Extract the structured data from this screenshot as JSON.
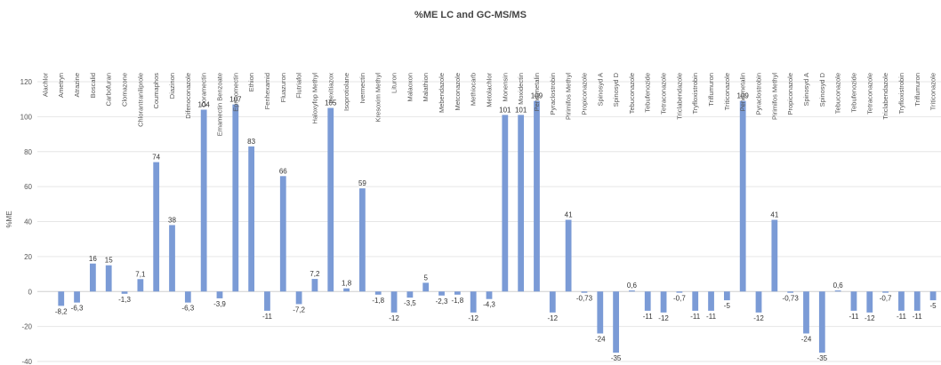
{
  "chart_data": {
    "type": "bar",
    "title": "%ME LC and GC-MS/MS",
    "ylabel": "%ME",
    "xlabel": "",
    "ylim": [
      -40,
      120
    ],
    "yticks": [
      -40,
      -20,
      0,
      20,
      40,
      60,
      80,
      100,
      120
    ],
    "grid": true,
    "legend": "none",
    "color": "#7b9bd6",
    "categories": [
      "Alachlor",
      "Ametryn",
      "Atrazine",
      "Boscalid",
      "Carbofuran",
      "Clomazone",
      "Chlorantraniliprole",
      "Coumaphos",
      "Diazinon",
      "Difenoconazole",
      "Doramectin",
      "Emamectin Benzoate",
      "Eprinomectin",
      "Ethion",
      "Fenhexamid",
      "Fluazuron",
      "Flutriafol",
      "Haloxyfop Methyl",
      "Hexitiazox",
      "Isoprotiolane",
      "Ivermectin",
      "Kresoxim Methyl",
      "Lituron",
      "Malaoxon",
      "Malathion",
      "Mebendazole",
      "Metconazole",
      "Methiocarb",
      "Metolachlor",
      "Monensin",
      "Moxidectin",
      "Pendimetalin",
      "Pyraclostrobin",
      "Pirimifos Methyl",
      "Propiconazole",
      "Spinosyd A",
      "Spinosyd D",
      "Tebuconazole",
      "Tebufenozide",
      "Tetraconazole",
      "Triclabendazole",
      "Tryfloxistrobin",
      "Triflumuron",
      "Triticonazole",
      "Pendimetalin",
      "Pyraclostrobin",
      "Pirimifos Methyl",
      "Propiconazole",
      "Spinosyd A",
      "Spinosyd D",
      "Tebuconazole",
      "Tebufenozide",
      "Tetraconazole",
      "Triclabendazole",
      "Tryfloxistrobin",
      "Triflumuron",
      "Triticonazole"
    ],
    "values": [
      0,
      -8.2,
      -6.3,
      16,
      15,
      -1.3,
      7.1,
      74,
      38,
      -6.3,
      104,
      -3.9,
      107,
      83,
      -11,
      66,
      -7.2,
      7.2,
      105,
      1.8,
      59,
      -1.8,
      -12,
      -3.5,
      5,
      -2.3,
      -1.8,
      -12,
      -4.3,
      101,
      101,
      109,
      -12,
      41,
      -0.73,
      -24,
      -35,
      0.6,
      -11,
      -12,
      -0.7,
      -11,
      -11,
      -5,
      109,
      -12,
      41,
      -0.73,
      -24,
      -35,
      0.6,
      -11,
      -12,
      -0.7,
      -11,
      -11,
      -5
    ],
    "data_labels": [
      "",
      "-8,2",
      "-6,3",
      "16",
      "15",
      "-1,3",
      "7,1",
      "74",
      "38",
      "-6,3",
      "104",
      "-3,9",
      "107",
      "83",
      "-11",
      "66",
      "-7,2",
      "7,2",
      "105",
      "1,8",
      "59",
      "-1,8",
      "-12",
      "-3,5",
      "5",
      "-2,3",
      "-1,8",
      "-12",
      "-4,3",
      "101",
      "101",
      "109",
      "-12",
      "41",
      "-0,73",
      "-24",
      "-35",
      "0,6",
      "-11",
      "-12",
      "-0,7",
      "-11",
      "-11",
      "-5",
      "109",
      "-12",
      "41",
      "-0,73",
      "-24",
      "-35",
      "0,6",
      "-11",
      "-12",
      "-0,7",
      "-11",
      "-11",
      "-5"
    ]
  }
}
